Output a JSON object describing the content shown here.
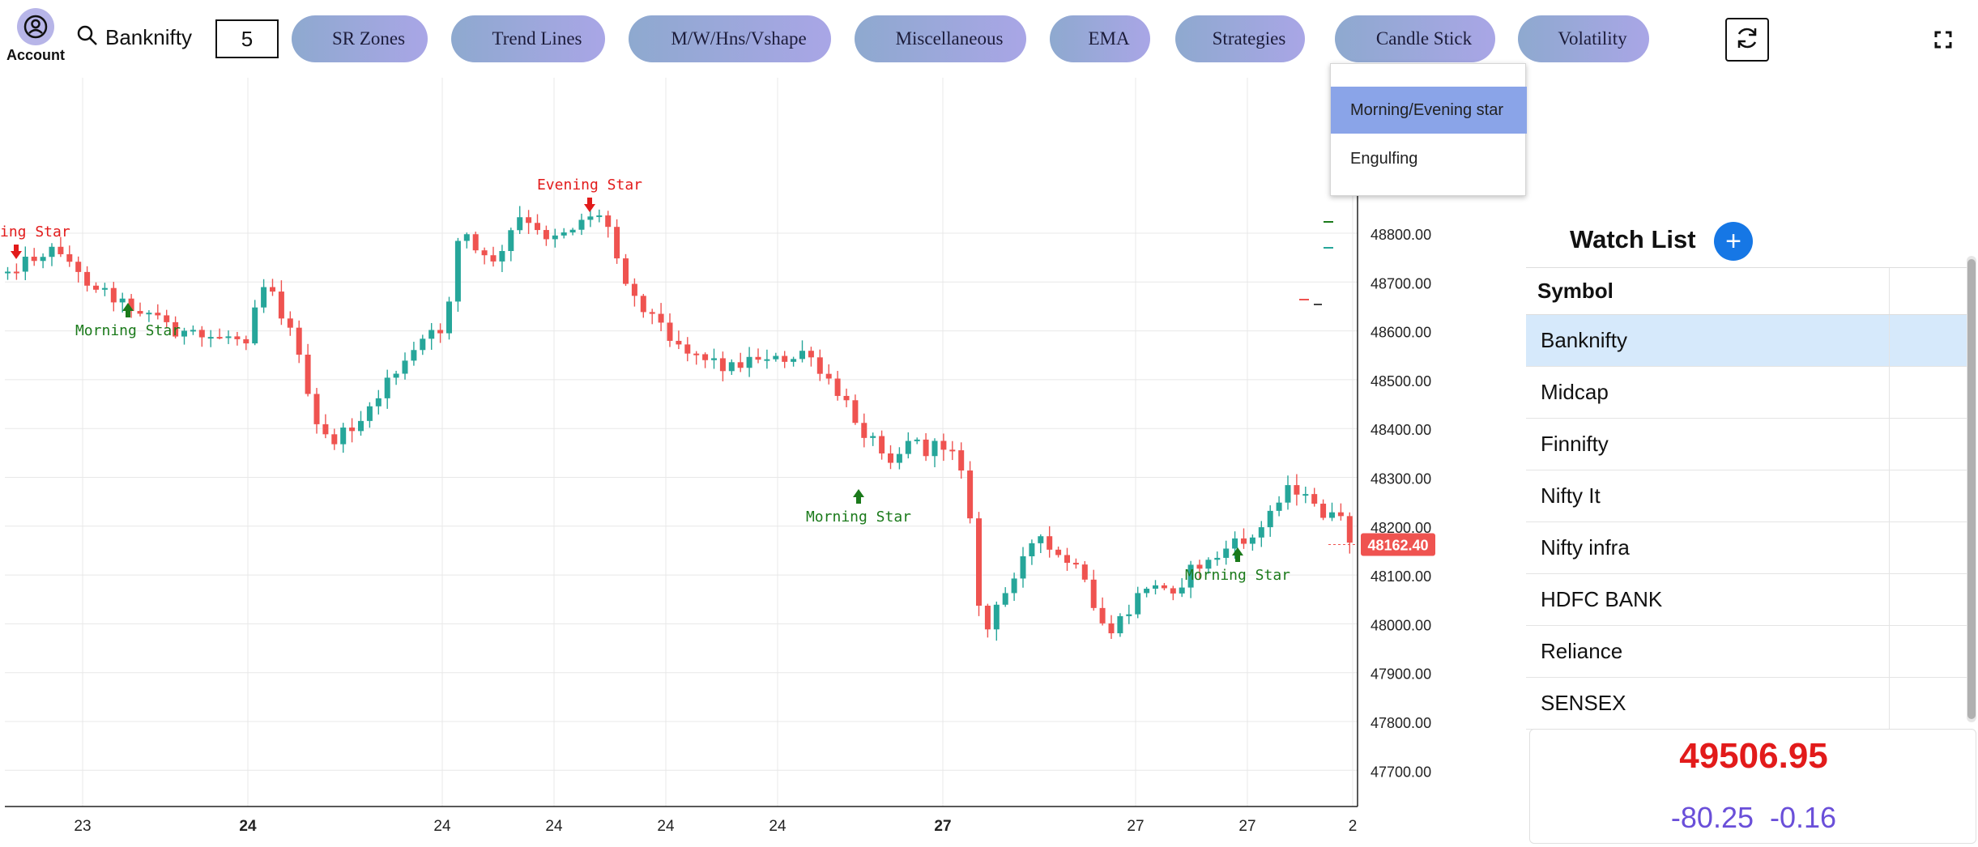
{
  "topbar": {
    "account_label": "Account",
    "search_symbol": "Banknifty",
    "interval": "5",
    "menus": [
      {
        "label": "SR Zones"
      },
      {
        "label": "Trend Lines"
      },
      {
        "label": "M/W/Hns/Vshape"
      },
      {
        "label": "Miscellaneous"
      },
      {
        "label": "EMA"
      },
      {
        "label": "Strategies"
      },
      {
        "label": "Candle Stick"
      },
      {
        "label": "Volatility"
      }
    ]
  },
  "dropdown": {
    "items": [
      {
        "label": "Morning/Evening star",
        "selected": true
      },
      {
        "label": "Engulfing",
        "selected": false
      }
    ]
  },
  "chart_data": {
    "type": "candlestick",
    "price_axis": {
      "ticks": [
        "48800.00",
        "48700.00",
        "48600.00",
        "48500.00",
        "48400.00",
        "48300.00",
        "48200.00",
        "48100.00",
        "48000.00",
        "47900.00",
        "47800.00",
        "47700.00"
      ],
      "last_price": "48162.40"
    },
    "time_axis": {
      "labels": [
        {
          "text": "23",
          "bold": false
        },
        {
          "text": "24",
          "bold": true
        },
        {
          "text": "24",
          "bold": false
        },
        {
          "text": "24",
          "bold": false
        },
        {
          "text": "24",
          "bold": false
        },
        {
          "text": "24",
          "bold": false
        },
        {
          "text": "27",
          "bold": true
        },
        {
          "text": "27",
          "bold": false
        },
        {
          "text": "27",
          "bold": false
        },
        {
          "text": "2",
          "bold": false
        }
      ]
    },
    "annotations": [
      {
        "text": "ing Star",
        "kind": "evening"
      },
      {
        "text": "Evening Star",
        "kind": "evening"
      },
      {
        "text": "Morning Star",
        "kind": "morning"
      },
      {
        "text": "Morning Star",
        "kind": "morning"
      },
      {
        "text": "Morning Star",
        "kind": "morning"
      }
    ],
    "colors": {
      "up": "#26a69a",
      "down": "#ef5350",
      "grid": "#e8e8e8"
    }
  },
  "watchlist": {
    "title": "Watch List",
    "add_label": "+",
    "column_header": "Symbol",
    "rows": [
      {
        "symbol": "Banknifty",
        "active": true
      },
      {
        "symbol": "Midcap",
        "active": false
      },
      {
        "symbol": "Finnifty",
        "active": false
      },
      {
        "symbol": "Nifty It",
        "active": false
      },
      {
        "symbol": "Nifty infra",
        "active": false
      },
      {
        "symbol": "HDFC BANK",
        "active": false
      },
      {
        "symbol": "Reliance",
        "active": false
      },
      {
        "symbol": "SENSEX",
        "active": false
      }
    ]
  },
  "quote": {
    "ltp": "49506.95",
    "change": "-80.25",
    "change_pct": "-0.16"
  }
}
